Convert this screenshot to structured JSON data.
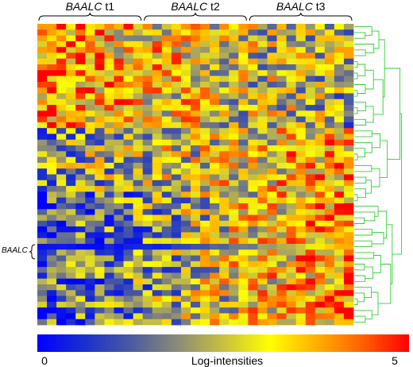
{
  "chart_data": {
    "type": "heatmap",
    "title": "",
    "groups": [
      {
        "gene": "BAALC",
        "level": "t1",
        "n_columns": 11
      },
      {
        "gene": "BAALC",
        "level": "t2",
        "n_columns": 11
      },
      {
        "gene": "BAALC",
        "level": "t3",
        "n_columns": 11
      }
    ],
    "n_rows": 52,
    "n_columns": 33,
    "row_annotation": {
      "label": "BAALC",
      "row_index": 38
    },
    "colorbar": {
      "label": "Log-intensities",
      "min_label": "0",
      "max_label": "5",
      "range": [
        0,
        5
      ],
      "colors": [
        "#0000ff",
        "#1a2fcf",
        "#4a5aa0",
        "#8a8a78",
        "#c8c040",
        "#ffff00",
        "#ffb000",
        "#ff6000",
        "#ff0000"
      ]
    },
    "dendrogram": {
      "side": "right",
      "color": "#33cc33"
    },
    "trend": "Rows in the upper block are high in t1 and lower in t3; rows in the lower block are low in t1 and high in t3."
  }
}
